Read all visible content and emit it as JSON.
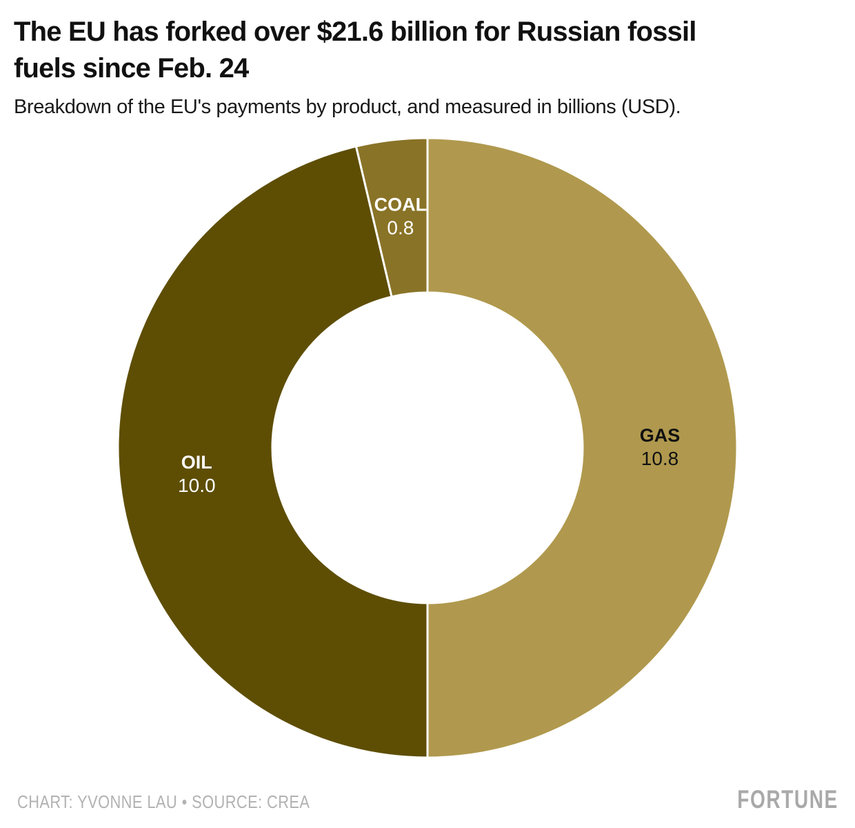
{
  "header": {
    "title_line1": "The EU has forked over $21.6 billion for Russian fossil",
    "title_line2": "fuels since Feb. 24",
    "subtitle": "Breakdown of the EU's payments by product, and measured in billions (USD)."
  },
  "chart_data": {
    "type": "pie",
    "donut": true,
    "title": "The EU has forked over $21.6 billion for Russian fossil fuels since Feb. 24",
    "subtitle": "Breakdown of the EU's payments by product, and measured in billions (USD).",
    "units": "billions USD",
    "total": 21.6,
    "start_angle_deg": 0,
    "direction": "clockwise",
    "inner_radius_ratio": 0.5,
    "separator_color": "#ffffff",
    "legend_position": "inside-slices",
    "segments": [
      {
        "label": "GAS",
        "value": 10.8,
        "display": "10.8",
        "color": "#B0994E",
        "text_color": "#111111"
      },
      {
        "label": "OIL",
        "value": 10.0,
        "display": "10.0",
        "color": "#5E4E04",
        "text_color": "#ffffff"
      },
      {
        "label": "COAL",
        "value": 0.8,
        "display": "0.8",
        "color": "#897327",
        "text_color": "#ffffff"
      }
    ]
  },
  "footer": {
    "credit": "CHART: YVONNE LAU • SOURCE: CREA",
    "brand": "FORTUNE"
  }
}
